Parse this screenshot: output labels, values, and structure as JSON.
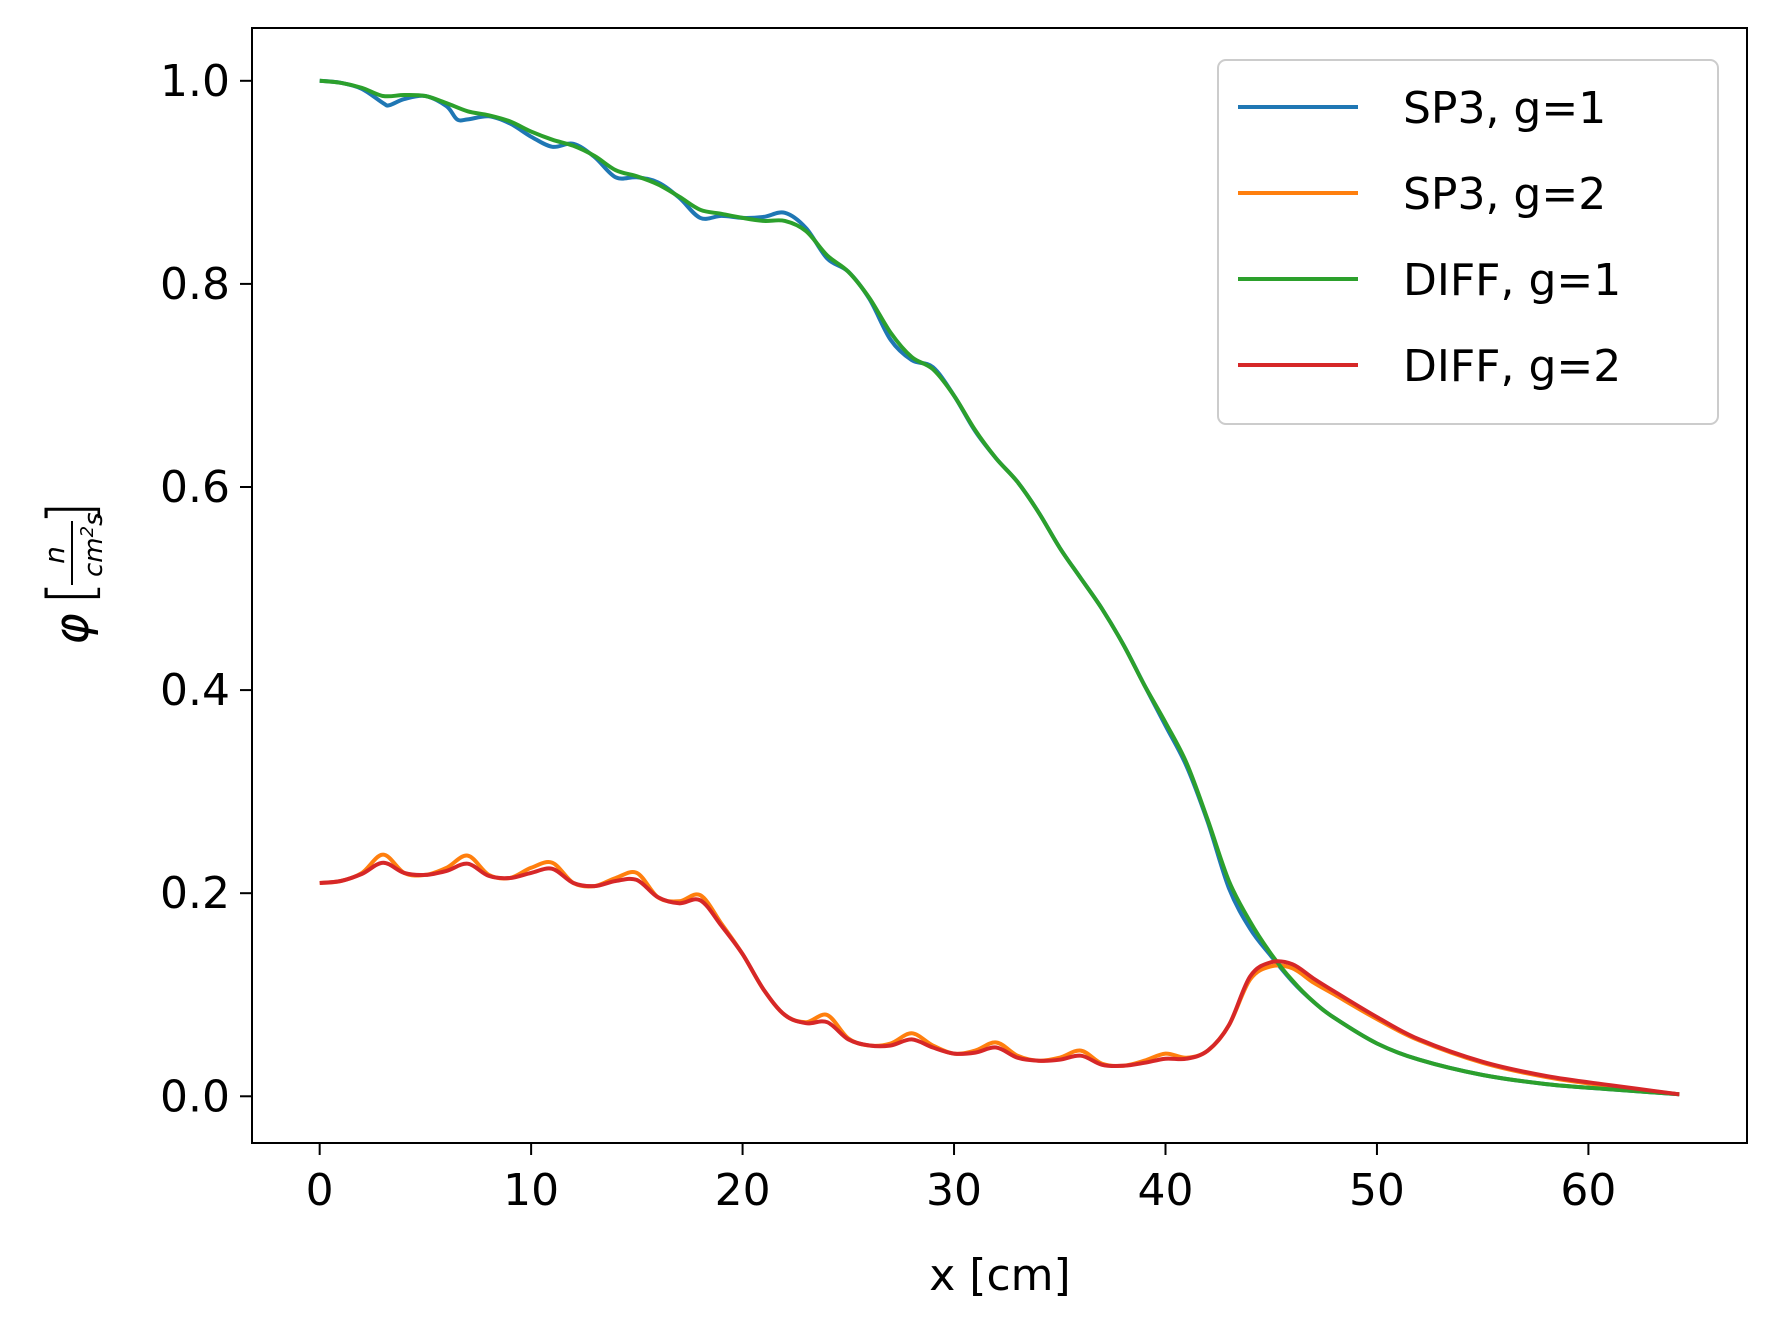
{
  "chart_data": {
    "type": "line",
    "title": "",
    "xlabel": "x [cm]",
    "ylabel": {
      "phi": "φ",
      "num": "n",
      "den_a": "cm",
      "den_sup": "2",
      "den_b": "s"
    },
    "xlim": [
      -3.2,
      67.5
    ],
    "ylim": [
      -0.046,
      1.052
    ],
    "xticks": [
      0,
      10,
      20,
      30,
      40,
      50,
      60
    ],
    "xtick_labels": [
      "0",
      "10",
      "20",
      "30",
      "40",
      "50",
      "60"
    ],
    "yticks": [
      0.0,
      0.2,
      0.4,
      0.6,
      0.8,
      1.0
    ],
    "ytick_labels": [
      "0.0",
      "0.2",
      "0.4",
      "0.6",
      "0.8",
      "1.0"
    ],
    "grid": false,
    "legend_position": "top-right",
    "series": [
      {
        "name": "SP3, g=1",
        "color": "#1f77b4",
        "x": [
          0,
          1,
          2,
          3,
          3.3,
          4,
          5,
          6,
          6.5,
          7,
          8,
          9,
          10,
          11,
          12,
          13,
          14,
          15,
          16,
          17,
          18,
          19,
          20,
          21,
          22,
          23,
          24,
          25,
          26,
          27,
          28,
          29,
          30,
          31,
          32,
          33,
          34,
          35,
          36,
          37,
          38,
          39,
          40,
          41,
          42,
          43,
          44,
          45,
          46,
          47,
          48,
          50,
          52,
          55,
          58,
          61,
          64.3
        ],
        "y": [
          1.0,
          0.998,
          0.992,
          0.978,
          0.976,
          0.982,
          0.985,
          0.975,
          0.962,
          0.962,
          0.965,
          0.958,
          0.945,
          0.935,
          0.938,
          0.925,
          0.905,
          0.905,
          0.9,
          0.885,
          0.865,
          0.867,
          0.865,
          0.866,
          0.87,
          0.855,
          0.825,
          0.812,
          0.785,
          0.745,
          0.725,
          0.718,
          0.69,
          0.655,
          0.628,
          0.605,
          0.575,
          0.54,
          0.51,
          0.48,
          0.445,
          0.405,
          0.365,
          0.325,
          0.27,
          0.205,
          0.165,
          0.138,
          0.113,
          0.093,
          0.077,
          0.052,
          0.036,
          0.021,
          0.012,
          0.007,
          0.002
        ]
      },
      {
        "name": "SP3, g=2",
        "color": "#ff7f0e",
        "x": [
          0,
          1,
          2,
          3,
          4,
          5,
          6,
          7,
          8,
          9,
          10,
          11,
          12,
          13,
          14,
          15,
          16,
          17,
          18,
          19,
          20,
          21,
          22,
          23,
          24,
          25,
          26,
          27,
          28,
          29,
          30,
          31,
          32,
          33,
          34,
          35,
          36,
          37,
          38,
          39,
          40,
          41,
          42,
          43,
          44,
          45,
          46,
          47,
          48,
          50,
          52,
          55,
          58,
          61,
          64.3
        ],
        "y": [
          0.21,
          0.212,
          0.22,
          0.238,
          0.22,
          0.218,
          0.225,
          0.237,
          0.218,
          0.215,
          0.225,
          0.23,
          0.21,
          0.207,
          0.215,
          0.22,
          0.196,
          0.192,
          0.198,
          0.17,
          0.14,
          0.105,
          0.08,
          0.073,
          0.08,
          0.057,
          0.05,
          0.052,
          0.062,
          0.05,
          0.042,
          0.045,
          0.053,
          0.04,
          0.035,
          0.038,
          0.045,
          0.032,
          0.03,
          0.035,
          0.042,
          0.038,
          0.045,
          0.07,
          0.115,
          0.128,
          0.126,
          0.112,
          0.1,
          0.076,
          0.055,
          0.033,
          0.019,
          0.01,
          0.002
        ]
      },
      {
        "name": "DIFF, g=1",
        "color": "#2ca02c",
        "x": [
          0,
          1,
          2,
          3,
          4,
          5,
          6,
          7,
          8,
          9,
          10,
          11,
          12,
          13,
          14,
          15,
          16,
          17,
          18,
          19,
          20,
          21,
          22,
          23,
          24,
          25,
          26,
          27,
          28,
          29,
          30,
          31,
          32,
          33,
          34,
          35,
          36,
          37,
          38,
          39,
          40,
          41,
          42,
          43,
          44,
          45,
          46,
          47,
          48,
          50,
          52,
          55,
          58,
          61,
          64.3
        ],
        "y": [
          1.0,
          0.998,
          0.993,
          0.985,
          0.986,
          0.985,
          0.978,
          0.97,
          0.966,
          0.96,
          0.95,
          0.942,
          0.936,
          0.926,
          0.912,
          0.906,
          0.898,
          0.886,
          0.873,
          0.869,
          0.865,
          0.862,
          0.862,
          0.852,
          0.828,
          0.812,
          0.786,
          0.752,
          0.728,
          0.716,
          0.69,
          0.656,
          0.628,
          0.605,
          0.575,
          0.54,
          0.51,
          0.48,
          0.445,
          0.405,
          0.368,
          0.328,
          0.272,
          0.212,
          0.172,
          0.14,
          0.114,
          0.093,
          0.077,
          0.052,
          0.036,
          0.021,
          0.012,
          0.007,
          0.002
        ]
      },
      {
        "name": "DIFF, g=2",
        "color": "#d62728",
        "x": [
          0,
          1,
          2,
          3,
          4,
          5,
          6,
          7,
          8,
          9,
          10,
          11,
          12,
          13,
          14,
          15,
          16,
          17,
          18,
          19,
          20,
          21,
          22,
          23,
          24,
          25,
          26,
          27,
          28,
          29,
          30,
          31,
          32,
          33,
          34,
          35,
          36,
          37,
          38,
          39,
          40,
          41,
          42,
          43,
          44,
          45,
          46,
          47,
          48,
          50,
          52,
          55,
          58,
          61,
          64.3
        ],
        "y": [
          0.21,
          0.212,
          0.219,
          0.23,
          0.22,
          0.218,
          0.222,
          0.229,
          0.217,
          0.215,
          0.22,
          0.224,
          0.21,
          0.207,
          0.212,
          0.213,
          0.196,
          0.19,
          0.193,
          0.168,
          0.14,
          0.105,
          0.08,
          0.072,
          0.073,
          0.056,
          0.05,
          0.05,
          0.056,
          0.048,
          0.042,
          0.043,
          0.048,
          0.038,
          0.035,
          0.036,
          0.04,
          0.031,
          0.03,
          0.033,
          0.037,
          0.037,
          0.045,
          0.07,
          0.118,
          0.132,
          0.13,
          0.116,
          0.103,
          0.078,
          0.056,
          0.034,
          0.02,
          0.011,
          0.002
        ]
      }
    ]
  }
}
